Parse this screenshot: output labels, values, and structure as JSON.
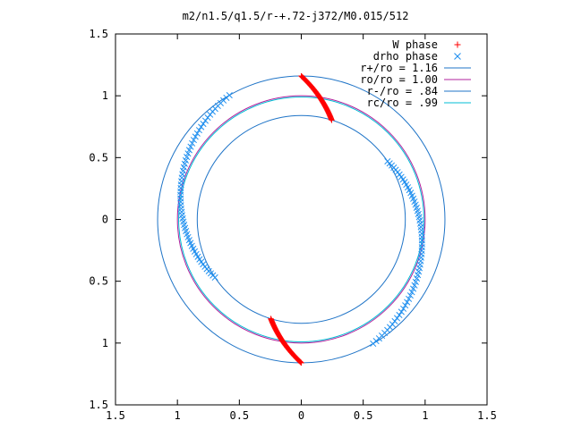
{
  "chart_data": {
    "type": "scatter",
    "title": "m2/n1.5/q1.5/r-+.72-j372/M0.015/512",
    "xlim": [
      -1.5,
      1.5
    ],
    "ylim": [
      -1.5,
      1.5
    ],
    "x_ticks": [
      -1.5,
      -1,
      -0.5,
      0,
      0.5,
      1,
      1.5
    ],
    "y_ticks": [
      -1.5,
      -1,
      -0.5,
      0,
      0.5,
      1,
      1.5
    ],
    "x_tick_labels": [
      "1.5",
      "1",
      "0.5",
      "0",
      "0.5",
      "1",
      "1.5"
    ],
    "y_tick_labels": [
      "1.5",
      "1",
      "0.5",
      "0",
      "0.5",
      "1",
      "1.5"
    ],
    "grid": false,
    "legend_position": "top-right",
    "circles": [
      {
        "name": "r+/ro = 1.16",
        "radius": 1.16,
        "color": "#1f74c7"
      },
      {
        "name": "ro/ro = 1.00",
        "radius": 1.0,
        "color": "#b0209c"
      },
      {
        "name": "r-/ro = .84",
        "radius": 0.84,
        "color": "#1f74c7"
      },
      {
        "name": "rc/ro = .99",
        "radius": 0.99,
        "color": "#00bcd4"
      }
    ],
    "series": [
      {
        "name": "W phase",
        "marker": "plus",
        "color": "#ff0000",
        "arcs": [
          {
            "r_start": 1.16,
            "r_end": 0.84,
            "theta_start_deg": 90,
            "theta_end_deg": 73
          },
          {
            "r_start": 1.16,
            "r_end": 0.84,
            "theta_start_deg": 270,
            "theta_end_deg": 253
          }
        ]
      },
      {
        "name": "drho phase",
        "marker": "cross",
        "color": "#1f8fef",
        "arcs": [
          {
            "r_start": 0.84,
            "r_end": 1.16,
            "theta_start_deg": 34,
            "theta_end_deg": -60
          },
          {
            "r_start": 0.84,
            "r_end": 1.16,
            "theta_start_deg": 214,
            "theta_end_deg": 120
          }
        ]
      }
    ]
  }
}
